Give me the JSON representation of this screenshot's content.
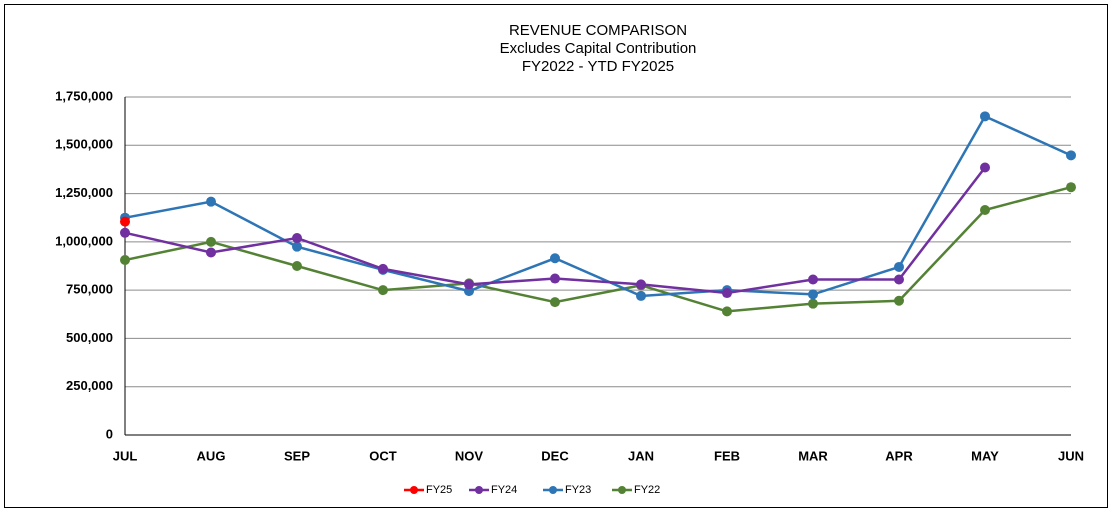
{
  "chart_data": {
    "type": "line",
    "title": [
      "REVENUE COMPARISON",
      "Excludes Capital Contribution",
      "FY2022 -  YTD FY2025"
    ],
    "categories": [
      "JUL",
      "AUG",
      "SEP",
      "OCT",
      "NOV",
      "DEC",
      "JAN",
      "FEB",
      "MAR",
      "APR",
      "MAY",
      "JUN"
    ],
    "series": [
      {
        "name": "FY25",
        "color": "#ff0000",
        "values": [
          1105000,
          null,
          null,
          null,
          null,
          null,
          null,
          null,
          null,
          null,
          null,
          null
        ]
      },
      {
        "name": "FY24",
        "color": "#7030a0",
        "values": [
          1047000,
          945000,
          1020000,
          860000,
          780000,
          810000,
          780000,
          735000,
          805000,
          805000,
          1385000,
          null
        ]
      },
      {
        "name": "FY23",
        "color": "#2e75b6",
        "values": [
          1125000,
          1208000,
          975000,
          855000,
          745000,
          915000,
          720000,
          750000,
          728000,
          870000,
          1650000,
          1448000
        ]
      },
      {
        "name": "FY22",
        "color": "#548235",
        "values": [
          906000,
          1000000,
          875000,
          750000,
          785000,
          688000,
          775000,
          640000,
          680000,
          695000,
          1165000,
          1283000
        ]
      }
    ],
    "ylim": [
      0,
      1750000
    ],
    "yticks": [
      0,
      {
        "value": 250000,
        "label": "250,000"
      },
      {
        "value": 500000,
        "label": "500,000"
      },
      {
        "value": 750000,
        "label": "750,000"
      },
      {
        "value": 1000000,
        "label": "1,000,000"
      },
      {
        "value": 1250000,
        "label": "1,250,000"
      },
      {
        "value": 1500000,
        "label": "1,500,000"
      },
      {
        "value": 1750000,
        "label": "1,750,000"
      }
    ],
    "grid": true,
    "legend": "bottom"
  }
}
